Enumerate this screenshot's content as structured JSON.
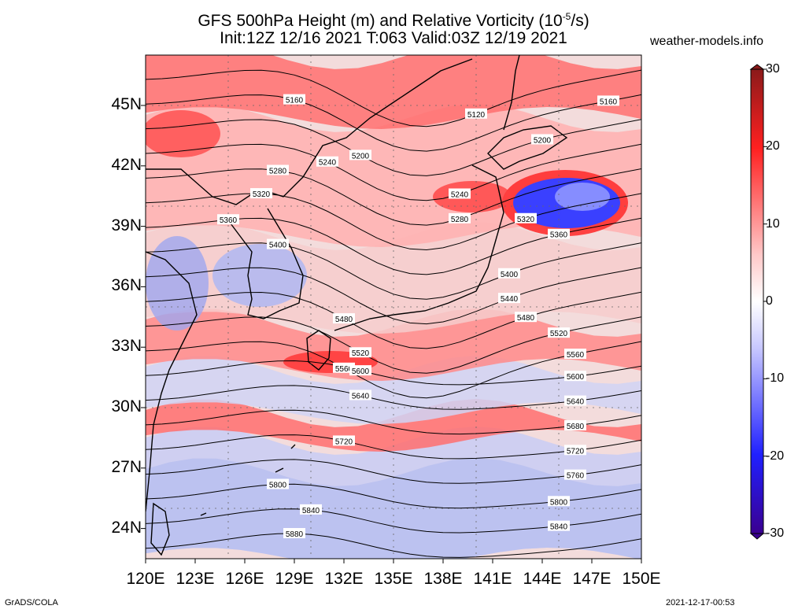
{
  "title": {
    "line1_pre": "GFS 500hPa Height (m) and Relative Vorticity (10",
    "line1_sup": "-5",
    "line1_post": "/s)",
    "line2": "Init:12Z 12/16 2021 T:063 Valid:03Z 12/19 2021"
  },
  "site": "weather-models.info",
  "footer_left": "GrADS/COLA",
  "footer_right": "2021-12-17-00:53",
  "map": {
    "lon_range": [
      120,
      150
    ],
    "lat_range": [
      22.5,
      47.5
    ],
    "x_ticks": [
      "120E",
      "123E",
      "126E",
      "129E",
      "132E",
      "135E",
      "138E",
      "141E",
      "144E",
      "147E",
      "150E"
    ],
    "y_ticks": [
      "45N",
      "42N",
      "39N",
      "36N",
      "33N",
      "30N",
      "27N",
      "24N"
    ],
    "contour_labels": [
      "5120",
      "5160",
      "5160",
      "5200",
      "5200",
      "5240",
      "5240",
      "5280",
      "5280",
      "5320",
      "5320",
      "5360",
      "5360",
      "5400",
      "5400",
      "5440",
      "5480",
      "5480",
      "5520",
      "5520",
      "5560",
      "5560",
      "5600",
      "5600",
      "5640",
      "5640",
      "5680",
      "5720",
      "5720",
      "5760",
      "5800",
      "5800",
      "5840",
      "5840",
      "5880"
    ]
  },
  "colorbar": {
    "labels": [
      "30",
      "20",
      "10",
      "0",
      "-10",
      "-20",
      "-30"
    ],
    "colors": {
      "max": "#8b1a1a",
      "high": "#ff2020",
      "low": "#ffc8c8",
      "zero": "#ffffff",
      "neg_low": "#c8c8ff",
      "neg_high": "#2020ff",
      "min": "#3a0090"
    }
  }
}
